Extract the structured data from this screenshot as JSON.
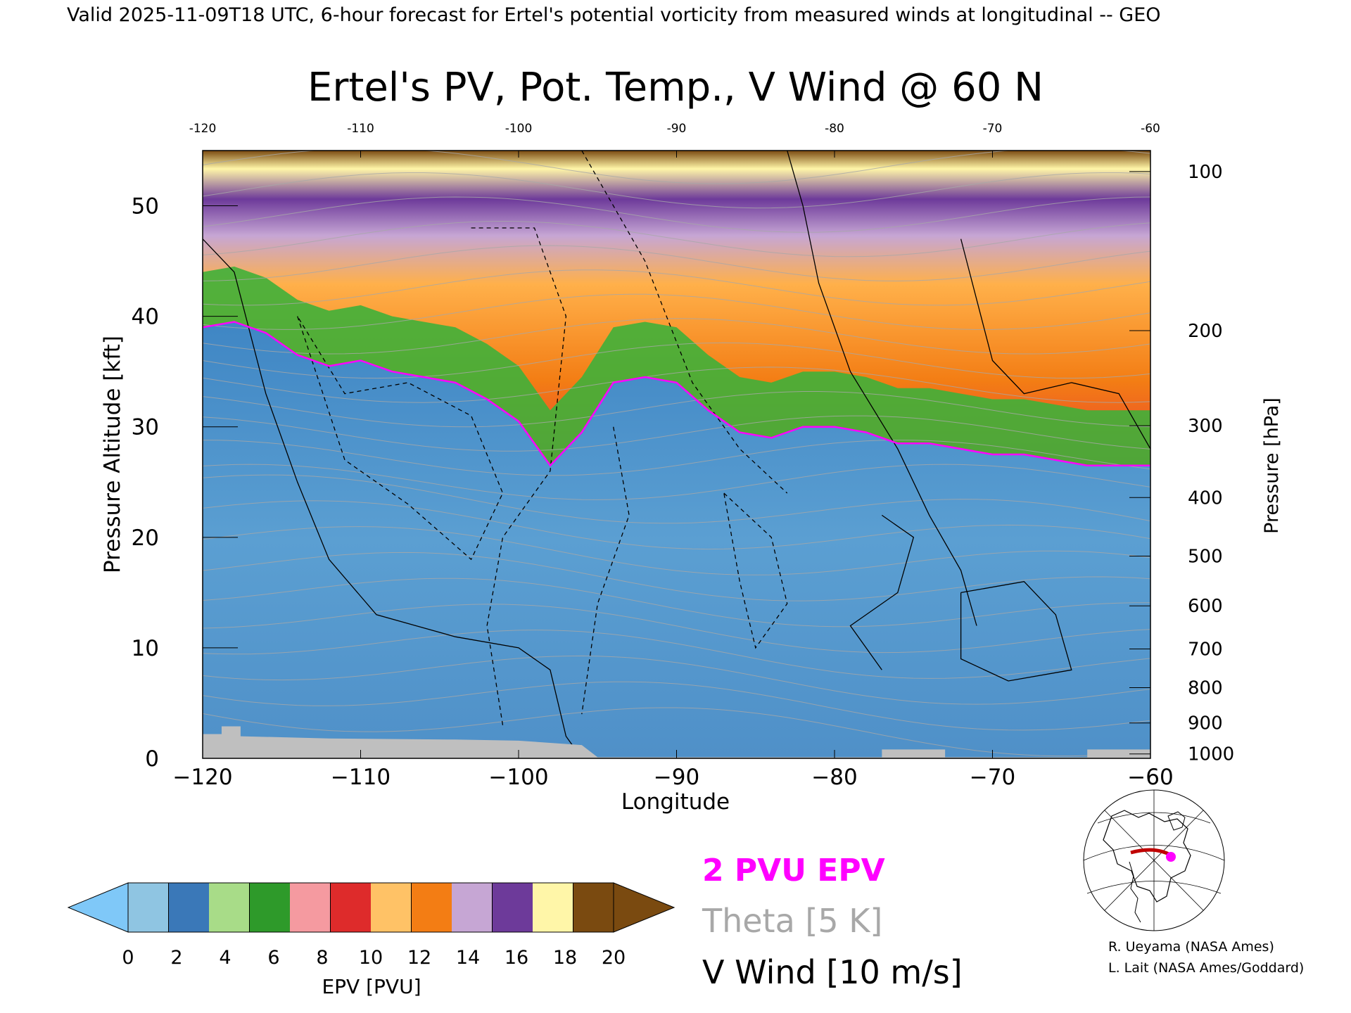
{
  "header": {
    "valid_line": "Valid 2025-11-09T18 UTC, 6-hour forecast for Ertel's potential vorticity from measured winds at longitudinal -- GEO"
  },
  "chart_data": {
    "type": "heatmap",
    "title": "Ertel's PV, Pot. Temp., V Wind @ 60 N",
    "xlabel": "Longitude",
    "ylabel_left": "Pressure Altitude [kft]",
    "ylabel_right": "Pressure [hPa]",
    "xlim": [
      -120,
      -60
    ],
    "ylim": [
      0,
      55
    ],
    "x_ticks": [
      -120,
      -110,
      -100,
      -90,
      -80,
      -70,
      -60
    ],
    "x_tick_labels": [
      "−120",
      "−110",
      "−100",
      "−90",
      "−80",
      "−70",
      "−60"
    ],
    "x_top_tick_labels": [
      "-120",
      "-110",
      "-100",
      "-90",
      "-80",
      "-70",
      "-60"
    ],
    "y_ticks": [
      0,
      10,
      20,
      30,
      40,
      50
    ],
    "y_tick_labels": [
      "0",
      "10",
      "20",
      "30",
      "40",
      "50"
    ],
    "pressure_ticks": [
      {
        "hpa": "100",
        "kft": 53.1
      },
      {
        "hpa": "200",
        "kft": 38.7
      },
      {
        "hpa": "300",
        "kft": 30.1
      },
      {
        "hpa": "400",
        "kft": 23.6
      },
      {
        "hpa": "500",
        "kft": 18.3
      },
      {
        "hpa": "600",
        "kft": 13.8
      },
      {
        "hpa": "700",
        "kft": 9.9
      },
      {
        "hpa": "800",
        "kft": 6.4
      },
      {
        "hpa": "900",
        "kft": 3.2
      },
      {
        "hpa": "1000",
        "kft": 0.4
      }
    ],
    "tropopause_2pvu_kft": [
      [
        -120,
        39.0
      ],
      [
        -118,
        39.5
      ],
      [
        -116,
        38.5
      ],
      [
        -114,
        36.5
      ],
      [
        -112,
        35.5
      ],
      [
        -110,
        36.0
      ],
      [
        -108,
        35.0
      ],
      [
        -106,
        34.5
      ],
      [
        -104,
        34.0
      ],
      [
        -102,
        32.5
      ],
      [
        -100,
        30.5
      ],
      [
        -98,
        26.5
      ],
      [
        -96,
        29.5
      ],
      [
        -94,
        34.0
      ],
      [
        -92,
        34.5
      ],
      [
        -90,
        34.0
      ],
      [
        -88,
        31.5
      ],
      [
        -86,
        29.5
      ],
      [
        -84,
        29.0
      ],
      [
        -82,
        30.0
      ],
      [
        -80,
        30.0
      ],
      [
        -78,
        29.5
      ],
      [
        -76,
        28.5
      ],
      [
        -74,
        28.5
      ],
      [
        -72,
        28.0
      ],
      [
        -70,
        27.5
      ],
      [
        -68,
        27.5
      ],
      [
        -66,
        27.0
      ],
      [
        -64,
        26.5
      ],
      [
        -62,
        26.5
      ],
      [
        -60,
        26.5
      ]
    ],
    "colorbar": {
      "label": "EPV [PVU]",
      "tick_labels": [
        "0",
        "2",
        "4",
        "6",
        "8",
        "10",
        "12",
        "14",
        "16",
        "18",
        "20"
      ],
      "colors": [
        "#8fc5e2",
        "#3a78b8",
        "#a8dc88",
        "#2e9a2a",
        "#f59aa0",
        "#de2b2b",
        "#ffc266",
        "#f37d14",
        "#c6a6d4",
        "#6d3a9a",
        "#fff6a8",
        "#7a4a10"
      ],
      "under_color": "#7fc8f8",
      "over_color": "#7a4a10"
    },
    "legend": [
      {
        "label": "2 PVU EPV",
        "color": "#ff00ff"
      },
      {
        "label": "Theta [5 K]",
        "color": "#a8a8a8"
      },
      {
        "label": "V Wind [10 m/s]",
        "color": "#000000"
      }
    ]
  },
  "credits": {
    "line1": "R. Ueyama (NASA Ames)",
    "line2": "L. Lait (NASA Ames/Goddard)"
  },
  "colors": {
    "troposphere": "#5b9fd2",
    "stratosphere_low": "#2e9a2a",
    "stratosphere_mid": "#de2b2b",
    "stratosphere_high": "#f37d14",
    "ground": "#bfbfbf",
    "tropopause": "#ff00ff",
    "theta": "#a8a8a8",
    "map_marker": "#ff00ff",
    "map_section": "#c00000"
  }
}
